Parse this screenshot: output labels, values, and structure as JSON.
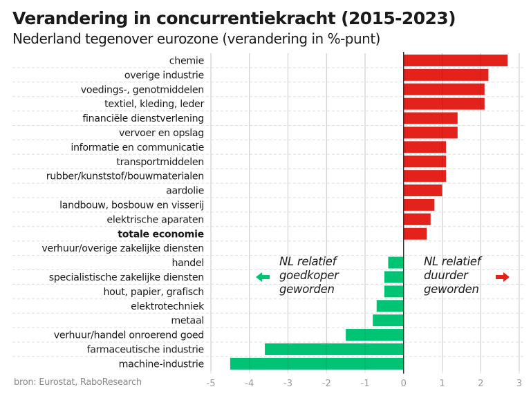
{
  "chart_data": {
    "type": "bar",
    "orientation": "horizontal",
    "title": "Verandering in concurrentiekracht (2015-2023)",
    "subtitle": "Nederland tegenover eurozone (verandering in %-punt)",
    "xlabel": "",
    "ylabel": "",
    "xlim": [
      -5,
      3
    ],
    "xticks": [
      -5,
      -4,
      -3,
      -2,
      -1,
      0,
      1,
      2,
      3
    ],
    "grid": true,
    "categories": [
      "chemie",
      "overige industrie",
      "voedings-, genotmiddelen",
      "textiel, kleding, leder",
      "financiële dienstverlening",
      "vervoer en opslag",
      "informatie en communicatie",
      "transportmiddelen",
      "rubber/kunststof/bouwmaterialen",
      "aardolie",
      "landbouw, bosbouw en visserij",
      "elektrische aparaten",
      "totale economie",
      "verhuur/overige zakelijke diensten",
      "handel",
      "specialistische zakelijke diensten",
      "hout, papier, grafisch",
      "elektrotechniek",
      "metaal",
      "verhuur/handel onroerend goed",
      "farmaceutische industrie",
      "machine-industrie"
    ],
    "values": [
      2.7,
      2.2,
      2.1,
      2.1,
      1.4,
      1.4,
      1.1,
      1.1,
      1.1,
      1.0,
      0.8,
      0.7,
      0.6,
      0.0,
      -0.4,
      -0.5,
      -0.5,
      -0.7,
      -0.8,
      -1.5,
      -3.6,
      -4.5
    ],
    "bold_categories": [
      "totale economie"
    ],
    "colors": {
      "positive": "#e3231b",
      "negative": "#00c373",
      "zero_line": "#1a1a1a",
      "grid": "#dddddd"
    },
    "annotations": [
      {
        "lines": [
          "NL relatief",
          "goedkoper",
          "geworden"
        ],
        "arrow": "left",
        "arrow_color": "#00c373"
      },
      {
        "lines": [
          "NL relatief",
          "duurder",
          "geworden"
        ],
        "arrow": "right",
        "arrow_color": "#e3231b"
      }
    ],
    "source": "bron: Eurostat, RaboResearch"
  }
}
